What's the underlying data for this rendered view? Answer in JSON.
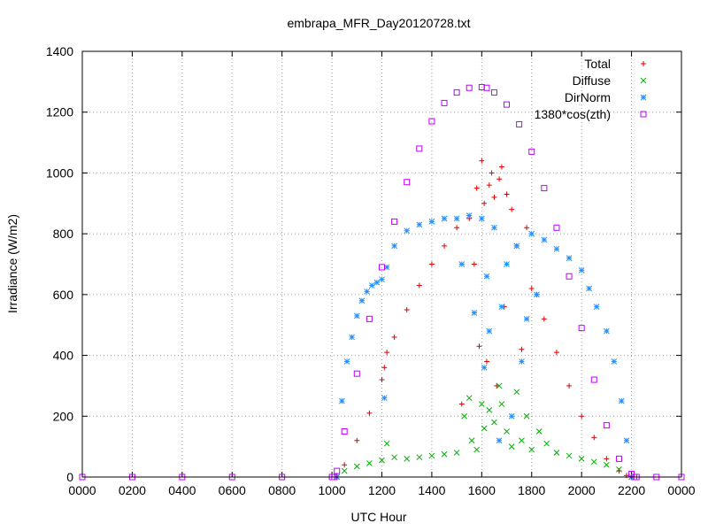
{
  "chart_data": {
    "type": "scatter",
    "title": "embrapa_MFR_Day20120728.txt",
    "xlabel": "UTC Hour",
    "ylabel": "Irradiance (W/m2)",
    "xlim": [
      0,
      24
    ],
    "ylim": [
      0,
      1400
    ],
    "x_ticks": [
      {
        "value": 0,
        "label": "0000"
      },
      {
        "value": 2,
        "label": "0200"
      },
      {
        "value": 4,
        "label": "0400"
      },
      {
        "value": 6,
        "label": "0600"
      },
      {
        "value": 8,
        "label": "0800"
      },
      {
        "value": 10,
        "label": "1000"
      },
      {
        "value": 12,
        "label": "1200"
      },
      {
        "value": 14,
        "label": "1400"
      },
      {
        "value": 16,
        "label": "1600"
      },
      {
        "value": 18,
        "label": "1800"
      },
      {
        "value": 20,
        "label": "2000"
      },
      {
        "value": 22,
        "label": "2200"
      },
      {
        "value": 24,
        "label": "0000"
      }
    ],
    "y_ticks": [
      0,
      200,
      400,
      600,
      800,
      1000,
      1200,
      1400
    ],
    "grid": true,
    "legend_position": "top-right",
    "series": [
      {
        "name": "Total",
        "marker": "plus",
        "color": "#e00000",
        "x": [
          10.2,
          10.5,
          11.0,
          11.5,
          12.0,
          12.1,
          12.2,
          12.5,
          13.0,
          13.5,
          14.0,
          14.5,
          15.0,
          15.2,
          15.5,
          15.7,
          15.8,
          15.9,
          16.0,
          16.1,
          16.2,
          16.3,
          16.4,
          16.5,
          16.6,
          16.7,
          16.8,
          16.9,
          17.0,
          17.2,
          17.4,
          17.6,
          17.8,
          18.0,
          18.2,
          18.5,
          19.0,
          19.5,
          20.0,
          20.5,
          21.0,
          21.5,
          21.8,
          22.0
        ],
        "y": [
          0,
          40,
          120,
          210,
          320,
          360,
          410,
          460,
          550,
          630,
          700,
          760,
          820,
          240,
          850,
          700,
          950,
          430,
          1040,
          900,
          380,
          960,
          1000,
          920,
          300,
          980,
          1020,
          560,
          930,
          880,
          760,
          420,
          820,
          620,
          600,
          520,
          410,
          300,
          200,
          130,
          60,
          20,
          5,
          0
        ]
      },
      {
        "name": "Diffuse",
        "marker": "cross",
        "color": "#00b000",
        "x": [
          10.2,
          10.5,
          11.0,
          11.5,
          12.0,
          12.2,
          12.5,
          13.0,
          13.5,
          14.0,
          14.5,
          15.0,
          15.3,
          15.5,
          15.6,
          15.8,
          16.0,
          16.1,
          16.3,
          16.5,
          16.7,
          16.8,
          17.0,
          17.2,
          17.4,
          17.6,
          17.8,
          18.0,
          18.3,
          18.6,
          19.0,
          19.5,
          20.0,
          20.5,
          21.0,
          21.5,
          22.0
        ],
        "y": [
          0,
          20,
          35,
          45,
          55,
          110,
          65,
          60,
          65,
          70,
          75,
          80,
          200,
          260,
          120,
          90,
          240,
          160,
          220,
          180,
          300,
          240,
          150,
          100,
          280,
          120,
          200,
          90,
          150,
          110,
          80,
          70,
          60,
          50,
          40,
          25,
          0
        ]
      },
      {
        "name": "DirNorm",
        "marker": "star",
        "color": "#1e90ff",
        "x": [
          10.2,
          10.4,
          10.6,
          10.8,
          11.0,
          11.2,
          11.4,
          11.6,
          11.8,
          12.0,
          12.1,
          12.2,
          12.5,
          13.0,
          13.5,
          14.0,
          14.5,
          15.0,
          15.2,
          15.5,
          15.7,
          16.0,
          16.1,
          16.2,
          16.3,
          16.5,
          16.7,
          16.8,
          17.0,
          17.2,
          17.4,
          17.6,
          17.8,
          18.0,
          18.2,
          18.5,
          19.0,
          19.5,
          20.0,
          20.3,
          20.6,
          21.0,
          21.3,
          21.6,
          21.8,
          22.0
        ],
        "y": [
          0,
          250,
          380,
          460,
          530,
          580,
          610,
          630,
          640,
          650,
          260,
          690,
          760,
          810,
          830,
          840,
          850,
          850,
          700,
          860,
          540,
          850,
          360,
          660,
          480,
          820,
          120,
          560,
          700,
          200,
          760,
          380,
          520,
          800,
          600,
          780,
          750,
          720,
          680,
          620,
          560,
          480,
          380,
          250,
          120,
          0
        ]
      },
      {
        "name": "1380*cos(zth)",
        "marker": "square",
        "color": "#c000ff",
        "x": [
          0,
          2,
          4,
          6,
          8,
          10,
          10.1,
          10.2,
          10.5,
          11.0,
          11.5,
          12.0,
          12.5,
          13.0,
          13.5,
          14.0,
          14.5,
          15.0,
          15.5,
          16.0,
          16.2,
          16.5,
          17.0,
          17.5,
          18.0,
          18.5,
          19.0,
          19.5,
          20.0,
          20.5,
          21.0,
          21.5,
          22.0,
          22.1,
          22.2,
          23,
          24
        ],
        "y": [
          0,
          0,
          0,
          0,
          0,
          0,
          0,
          20,
          150,
          340,
          520,
          690,
          840,
          970,
          1080,
          1170,
          1230,
          1265,
          1280,
          1282,
          1280,
          1265,
          1225,
          1160,
          1070,
          950,
          820,
          660,
          490,
          320,
          170,
          60,
          10,
          0,
          0,
          0,
          0
        ]
      }
    ]
  }
}
